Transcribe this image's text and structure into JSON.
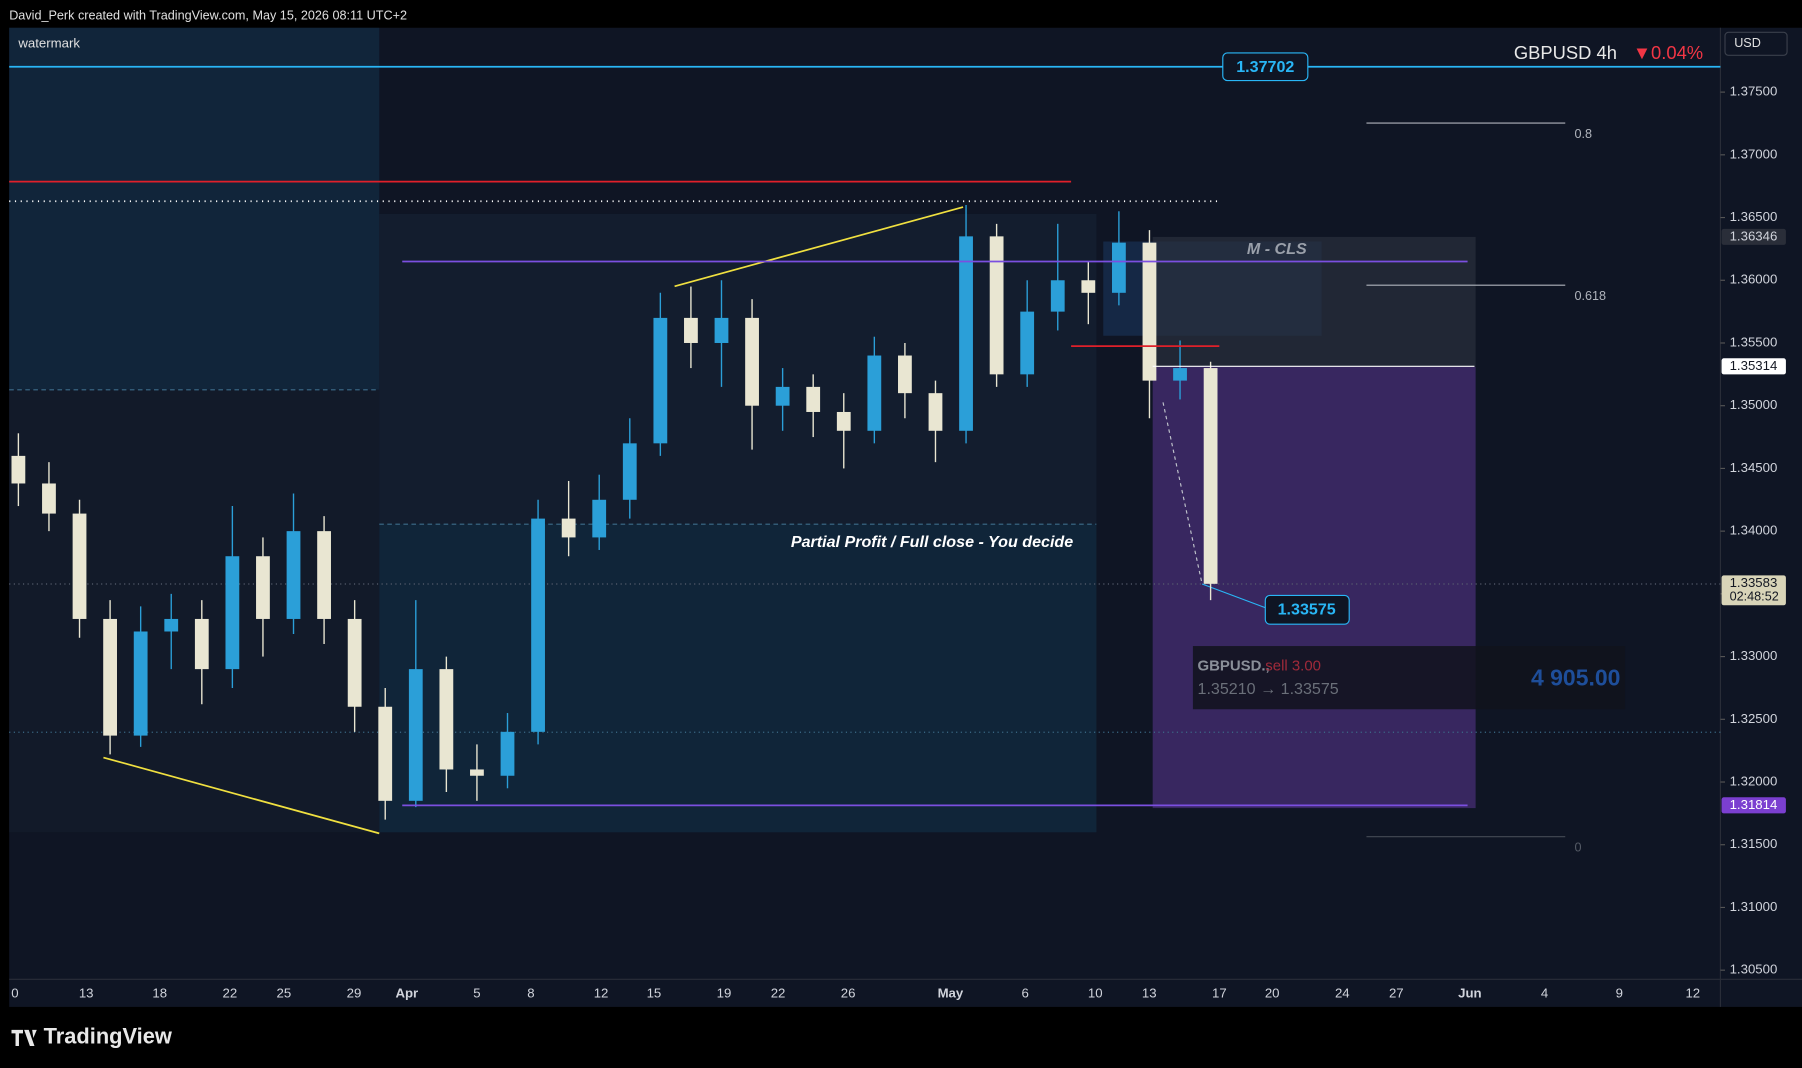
{
  "header": {
    "author_line": "David_Perk created with TradingView.com, May 15, 2026 08:11 UTC+2"
  },
  "footer": {
    "brand": "TradingView"
  },
  "chart_data": {
    "type": "candlestick",
    "watermark": "watermark",
    "symbol": "GBPUSD 4h",
    "change": "▼0.04%",
    "currency": "USD",
    "up_color": "#2b9fd8",
    "down_color": "#e9e6d2",
    "open": [
      1.346,
      1.3438,
      1.3414,
      1.333,
      1.3237,
      1.332,
      1.333,
      1.329,
      1.338,
      1.333,
      1.34,
      1.333,
      1.326,
      1.3185,
      1.329,
      1.321,
      1.3205,
      1.324,
      1.341,
      1.3395,
      1.3425,
      1.347,
      1.357,
      1.355,
      1.357,
      1.35,
      1.3515,
      1.3495,
      1.348,
      1.354,
      1.351,
      1.348,
      1.3635,
      1.3525,
      1.3575,
      1.36,
      1.359,
      1.363,
      1.352,
      1.353
    ],
    "high": [
      1.3478,
      1.3455,
      1.3425,
      1.3345,
      1.334,
      1.335,
      1.3345,
      1.342,
      1.3395,
      1.343,
      1.3412,
      1.3345,
      1.3275,
      1.3345,
      1.33,
      1.323,
      1.3255,
      1.3425,
      1.344,
      1.3445,
      1.349,
      1.359,
      1.3595,
      1.36,
      1.3585,
      1.353,
      1.3525,
      1.351,
      1.3555,
      1.355,
      1.352,
      1.366,
      1.3645,
      1.36,
      1.3645,
      1.3615,
      1.3655,
      1.364,
      1.3552,
      1.3535
    ],
    "low": [
      1.342,
      1.34,
      1.3315,
      1.3222,
      1.3228,
      1.329,
      1.3262,
      1.3275,
      1.33,
      1.3318,
      1.331,
      1.324,
      1.317,
      1.318,
      1.3192,
      1.3185,
      1.3195,
      1.323,
      1.338,
      1.3385,
      1.341,
      1.346,
      1.353,
      1.3515,
      1.3465,
      1.348,
      1.3475,
      1.345,
      1.347,
      1.349,
      1.3455,
      1.347,
      1.3515,
      1.3515,
      1.356,
      1.3565,
      1.358,
      1.349,
      1.3505,
      1.3345
    ],
    "close": [
      1.3438,
      1.3414,
      1.333,
      1.3237,
      1.332,
      1.333,
      1.329,
      1.338,
      1.333,
      1.34,
      1.333,
      1.326,
      1.3185,
      1.329,
      1.321,
      1.3205,
      1.324,
      1.341,
      1.3395,
      1.3425,
      1.347,
      1.357,
      1.355,
      1.357,
      1.35,
      1.3515,
      1.3495,
      1.348,
      1.354,
      1.351,
      1.348,
      1.3635,
      1.3525,
      1.3575,
      1.36,
      1.359,
      1.363,
      1.352,
      1.353,
      1.3358
    ],
    "ylim": [
      1.30427,
      1.38013
    ],
    "yticks": [
      {
        "value": 1.375,
        "label": "1.37500"
      },
      {
        "value": 1.37,
        "label": "1.37000"
      },
      {
        "value": 1.365,
        "label": "1.36500"
      },
      {
        "value": 1.36,
        "label": "1.36000"
      },
      {
        "value": 1.355,
        "label": "1.35500"
      },
      {
        "value": 1.35,
        "label": "1.35000"
      },
      {
        "value": 1.345,
        "label": "1.34500"
      },
      {
        "value": 1.34,
        "label": "1.34000"
      },
      {
        "value": 1.335,
        "label": "1.33500"
      },
      {
        "value": 1.33,
        "label": "1.33000"
      },
      {
        "value": 1.325,
        "label": "1.32500"
      },
      {
        "value": 1.32,
        "label": "1.32000"
      },
      {
        "value": 1.315,
        "label": "1.31500"
      },
      {
        "value": 1.31,
        "label": "1.31000"
      },
      {
        "value": 1.305,
        "label": "1.30500"
      }
    ],
    "x_labels": [
      "0",
      "13",
      "18",
      "22",
      "25",
      "29",
      "Apr",
      "5",
      "8",
      "12",
      "15",
      "19",
      "22",
      "26",
      "May",
      "6",
      "10",
      "13",
      "17",
      "20",
      "24",
      "27",
      "Jun",
      "4",
      "9",
      "12"
    ],
    "levels": [
      {
        "value": 1.37702,
        "label": "1.37702",
        "color": "#29b6f6"
      },
      {
        "value": 1.36786,
        "color": "#e0202a"
      },
      {
        "value": 1.3663,
        "color": "#ffffff"
      },
      {
        "value": 1.3615,
        "color": "#7b4fe0"
      },
      {
        "value": 1.31814,
        "color": "#7b4fe0"
      },
      {
        "value": 1.35475,
        "color": "#e0202a"
      },
      {
        "value": 1.35314,
        "color": "#ffffff"
      }
    ],
    "price_labels": [
      {
        "value": 1.36346,
        "label": "1.36346"
      },
      {
        "value": 1.35314,
        "label": "1.35314"
      },
      {
        "value": 1.33583,
        "label": "1.33583",
        "countdown": "02:48:52"
      },
      {
        "value": 1.31814,
        "label": "1.31814"
      }
    ],
    "fib": [
      {
        "value": 1.37253,
        "label": "0.8"
      },
      {
        "value": 1.35961,
        "label": "0.618"
      },
      {
        "value": 1.31564,
        "label": "0"
      }
    ],
    "annotations": {
      "zone": "M - CLS",
      "note": "Partial Profit / Full close - You decide",
      "target": {
        "value": 1.33575,
        "label": "1.33575"
      }
    },
    "trade": {
      "symbol": "GBPUSD.,",
      "side": "sell 3.00",
      "route": "1.35210 → 1.33575",
      "pnl": "4 905.00"
    }
  }
}
